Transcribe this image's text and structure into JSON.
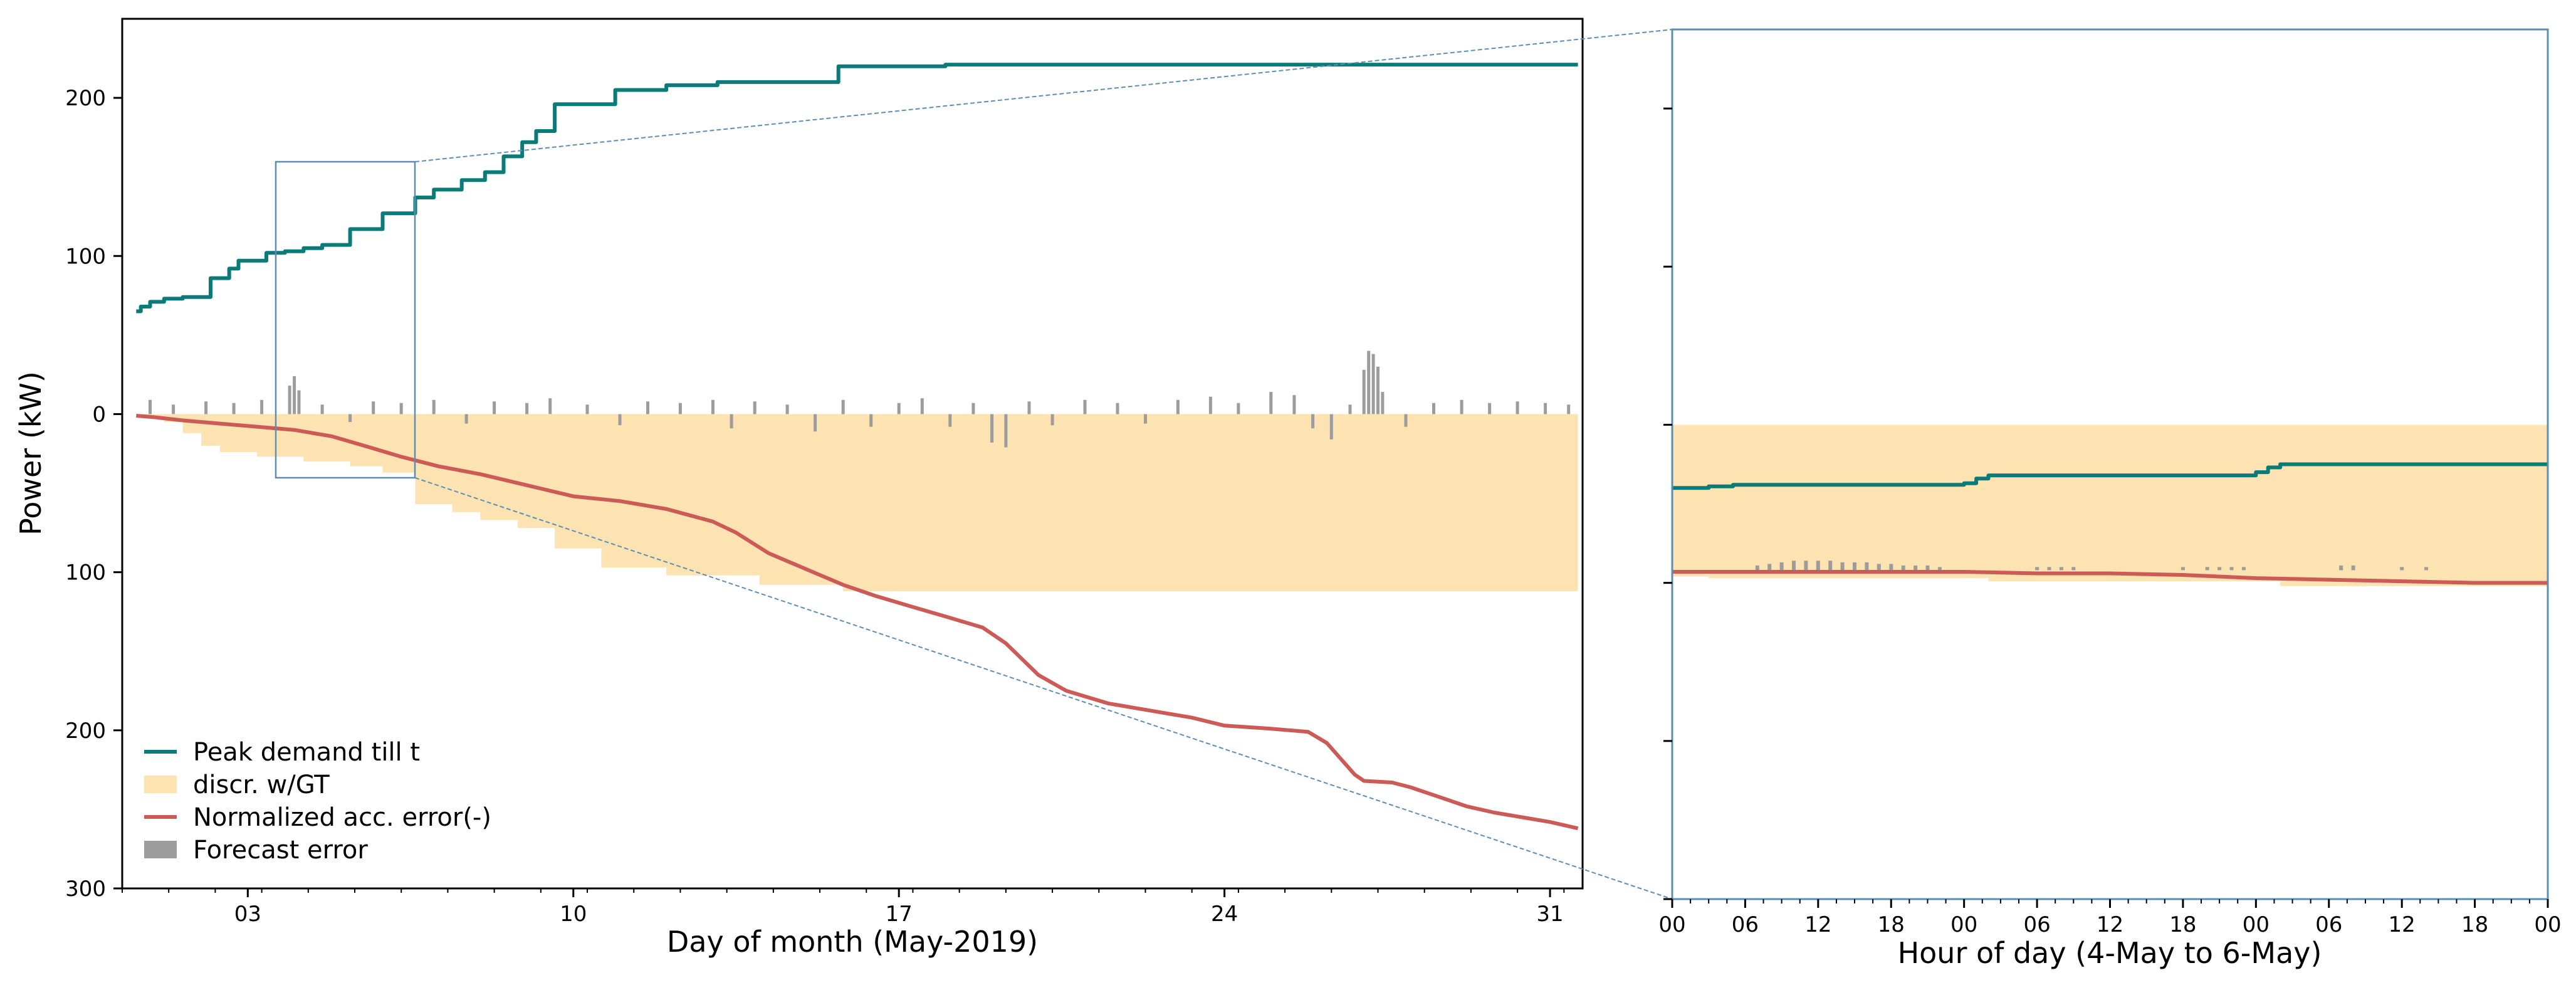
{
  "chart_data": [
    {
      "type": "line",
      "xlabel": "Day of month (May-2019)",
      "ylabel": "Power (kW)",
      "xlim": [
        0.3,
        31.7
      ],
      "ylim": [
        -300,
        250
      ],
      "y_tick_values": [
        -300,
        -200,
        -100,
        0,
        100,
        200
      ],
      "y_tick_labels": [
        "300",
        "200",
        "100",
        "0",
        "100",
        "200"
      ],
      "x_tick_values": [
        3,
        10,
        17,
        24,
        31
      ],
      "x_tick_labels": [
        "03",
        "10",
        "17",
        "24",
        "31"
      ],
      "grid": false,
      "legend_position": "bottom-left",
      "series": [
        {
          "name": "Peak demand till t",
          "kind": "step-line",
          "color": "#0a7b79",
          "x": [
            0.6,
            0.7,
            0.9,
            1.2,
            1.6,
            2.2,
            2.6,
            2.8,
            3.4,
            3.8,
            4.2,
            4.6,
            5.2,
            5.9,
            6.6,
            7.0,
            7.6,
            8.1,
            8.5,
            8.9,
            9.2,
            9.6,
            10.9,
            12.0,
            13.1,
            15.7,
            18.0,
            31.6
          ],
          "y": [
            65,
            68,
            71,
            73,
            74,
            86,
            92,
            97,
            102,
            103,
            105,
            107,
            117,
            127,
            137,
            142,
            148,
            153,
            163,
            172,
            179,
            196,
            205,
            208,
            210,
            220,
            221,
            221
          ]
        },
        {
          "name": "Normalized acc. error(-)",
          "kind": "line",
          "color": "#cc5a57",
          "x": [
            0.6,
            1.0,
            1.6,
            2.4,
            3.2,
            4.0,
            4.8,
            5.5,
            6.3,
            7.1,
            8.0,
            9.0,
            10.0,
            11.0,
            12.0,
            13.0,
            13.5,
            14.2,
            15.0,
            15.8,
            16.5,
            17.3,
            18.0,
            18.8,
            19.3,
            20.0,
            20.6,
            21.5,
            22.5,
            23.3,
            24.0,
            25.0,
            25.8,
            26.2,
            26.5,
            26.8,
            27.0,
            27.6,
            28.0,
            28.6,
            29.2,
            29.8,
            30.4,
            31.0,
            31.6
          ],
          "y": [
            -1,
            -2,
            -4,
            -6,
            -8,
            -10,
            -14,
            -20,
            -27,
            -33,
            -38,
            -45,
            -52,
            -55,
            -60,
            -68,
            -75,
            -88,
            -98,
            -108,
            -115,
            -122,
            -128,
            -135,
            -145,
            -165,
            -175,
            -183,
            -188,
            -192,
            -197,
            -199,
            -201,
            -208,
            -218,
            -228,
            -232,
            -233,
            -236,
            -242,
            -248,
            -252,
            -255,
            -258,
            -262
          ]
        },
        {
          "name": "discr. w/GT",
          "kind": "area-below-zero",
          "color": "#fde3b1",
          "x": [
            0.6,
            1.2,
            1.6,
            2.0,
            2.4,
            3.2,
            4.2,
            5.2,
            5.9,
            6.6,
            7.4,
            8.0,
            8.8,
            9.6,
            10.6,
            12.0,
            14.0,
            15.8,
            31.6
          ],
          "y": [
            -2,
            -5,
            -12,
            -20,
            -24,
            -27,
            -30,
            -33,
            -37,
            -57,
            -62,
            -67,
            -72,
            -85,
            -97,
            -102,
            -108,
            -112,
            -115
          ]
        },
        {
          "name": "Forecast error",
          "kind": "bars",
          "color": "#9c9c9c",
          "x": [
            0.9,
            1.4,
            2.1,
            2.7,
            3.3,
            3.9,
            4.0,
            4.1,
            4.6,
            5.2,
            5.7,
            6.3,
            7.0,
            7.7,
            8.3,
            9.0,
            9.5,
            10.3,
            11.0,
            11.6,
            12.3,
            13.0,
            13.4,
            13.9,
            14.6,
            15.2,
            15.8,
            16.4,
            17.0,
            17.5,
            18.1,
            18.6,
            19.0,
            19.3,
            19.8,
            20.3,
            21.0,
            21.7,
            22.3,
            23.0,
            23.7,
            24.3,
            25.0,
            25.5,
            25.9,
            26.3,
            26.7,
            27.0,
            27.1,
            27.2,
            27.3,
            27.4,
            27.9,
            28.5,
            29.1,
            29.7,
            30.3,
            30.9,
            31.4
          ],
          "y": [
            9,
            6,
            8,
            7,
            9,
            18,
            24,
            15,
            6,
            -5,
            8,
            7,
            9,
            -6,
            8,
            7,
            10,
            6,
            -7,
            8,
            7,
            9,
            -9,
            8,
            6,
            -11,
            9,
            -8,
            7,
            10,
            -8,
            7,
            -18,
            -21,
            8,
            -7,
            9,
            7,
            -6,
            9,
            11,
            7,
            14,
            12,
            -9,
            -16,
            6,
            28,
            40,
            38,
            30,
            14,
            -8,
            7,
            9,
            7,
            8,
            7,
            6
          ]
        }
      ]
    },
    {
      "type": "line",
      "xlabel": "Hour of day (4-May to 6-May)",
      "ylabel": "",
      "xlim": [
        0,
        72
      ],
      "ylim": [
        -300,
        250
      ],
      "x_tick_values": [
        0,
        6,
        12,
        18,
        24,
        30,
        36,
        42,
        48,
        54,
        60,
        66,
        72
      ],
      "x_tick_labels": [
        "00",
        "06",
        "12",
        "18",
        "00",
        "06",
        "12",
        "18",
        "00",
        "06",
        "12",
        "18",
        "00"
      ],
      "series": [
        {
          "name": "Peak demand till t",
          "kind": "step-line",
          "color": "#0a7b79",
          "x": [
            0,
            3,
            5,
            24,
            25,
            26,
            48,
            49,
            50,
            72
          ],
          "y": [
            -40,
            -39,
            -38,
            -37,
            -34,
            -32,
            -30,
            -27,
            -25,
            -25
          ]
        },
        {
          "name": "Normalized acc. error(-)",
          "kind": "line",
          "color": "#cc5a57",
          "x": [
            0,
            6,
            12,
            18,
            24,
            30,
            36,
            42,
            48,
            54,
            60,
            66,
            72
          ],
          "y": [
            -93,
            -93,
            -93,
            -93,
            -93,
            -94,
            -94,
            -95,
            -97,
            -98,
            -99,
            -100,
            -100
          ]
        },
        {
          "name": "discr. w/GT",
          "kind": "area-below-zero",
          "color": "#fde3b1",
          "x": [
            0,
            3,
            24,
            26,
            48,
            50,
            72
          ],
          "y": [
            -96,
            -97,
            -97,
            -99,
            -99,
            -102,
            -102
          ]
        },
        {
          "name": "Forecast error",
          "kind": "bars",
          "color": "#9c9c9c",
          "x": [
            7,
            8,
            9,
            10,
            11,
            12,
            13,
            14,
            15,
            16,
            17,
            18,
            19,
            20,
            21,
            22,
            30,
            31,
            32,
            33,
            42,
            44,
            45,
            46,
            47,
            55,
            56,
            60,
            62
          ],
          "y": [
            -89,
            -88,
            -87,
            -86,
            -86,
            -86,
            -86,
            -87,
            -87,
            -87,
            -88,
            -88,
            -89,
            -89,
            -89,
            -90,
            -90,
            -90,
            -90,
            -90,
            -90,
            -90,
            -90,
            -90,
            -90,
            -89,
            -89,
            -90,
            -90
          ]
        }
      ]
    }
  ]
}
